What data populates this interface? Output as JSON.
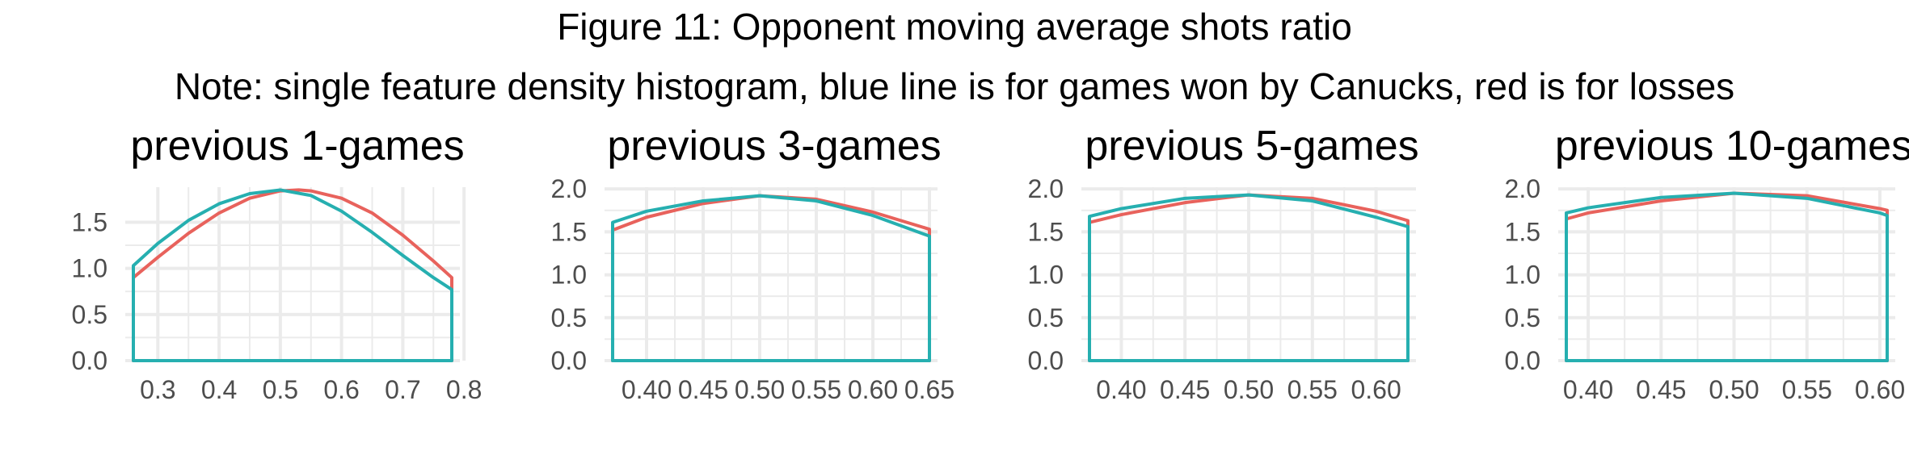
{
  "figure": {
    "title": "Figure 11: Opponent moving average shots ratio",
    "note": "Note: single feature density histogram, blue line is for games won by Canucks, red is for losses"
  },
  "colors": {
    "win": "#26AFB0",
    "loss": "#E8625C",
    "grid": "#EBEBEB",
    "tick_text": "#4D4D4D"
  },
  "chart_data": [
    {
      "type": "area",
      "title": "previous 1-games",
      "xlim": [
        0.26,
        0.78
      ],
      "ylim": [
        0,
        1.88
      ],
      "xticks": [
        0.3,
        0.4,
        0.5,
        0.6,
        0.7,
        0.8
      ],
      "xtick_labels": [
        "0.3",
        "0.4",
        "0.5",
        "0.6",
        "0.7",
        "0.8"
      ],
      "yticks": [
        0.0,
        0.5,
        1.0,
        1.5
      ],
      "ytick_labels": [
        "0.0",
        "0.5",
        "1.0",
        "1.5"
      ],
      "series": [
        {
          "color": "#E8625C",
          "x": [
            0.26,
            0.3,
            0.35,
            0.4,
            0.45,
            0.5,
            0.53,
            0.55,
            0.6,
            0.65,
            0.7,
            0.75,
            0.78
          ],
          "y": [
            0.9,
            1.12,
            1.38,
            1.6,
            1.76,
            1.84,
            1.85,
            1.84,
            1.76,
            1.6,
            1.36,
            1.08,
            0.9
          ]
        },
        {
          "color": "#26AFB0",
          "x": [
            0.26,
            0.3,
            0.35,
            0.4,
            0.45,
            0.5,
            0.55,
            0.6,
            0.65,
            0.7,
            0.75,
            0.78
          ],
          "y": [
            1.03,
            1.27,
            1.52,
            1.7,
            1.81,
            1.85,
            1.79,
            1.62,
            1.39,
            1.14,
            0.9,
            0.77
          ]
        }
      ]
    },
    {
      "type": "area",
      "title": "previous 3-games",
      "xlim": [
        0.37,
        0.65
      ],
      "ylim": [
        0,
        2.02
      ],
      "xticks": [
        0.4,
        0.45,
        0.5,
        0.55,
        0.6,
        0.65
      ],
      "xtick_labels": [
        "0.40",
        "0.45",
        "0.50",
        "0.55",
        "0.60",
        "0.65"
      ],
      "yticks": [
        0.0,
        0.5,
        1.0,
        1.5,
        2.0
      ],
      "ytick_labels": [
        "0.0",
        "0.5",
        "1.0",
        "1.5",
        "2.0"
      ],
      "series": [
        {
          "color": "#E8625C",
          "x": [
            0.37,
            0.4,
            0.45,
            0.5,
            0.55,
            0.6,
            0.65
          ],
          "y": [
            1.52,
            1.67,
            1.83,
            1.92,
            1.88,
            1.73,
            1.53
          ]
        },
        {
          "color": "#26AFB0",
          "x": [
            0.37,
            0.4,
            0.45,
            0.5,
            0.55,
            0.6,
            0.65
          ],
          "y": [
            1.61,
            1.74,
            1.86,
            1.92,
            1.86,
            1.69,
            1.45
          ]
        }
      ]
    },
    {
      "type": "area",
      "title": "previous 5-games",
      "xlim": [
        0.375,
        0.625
      ],
      "ylim": [
        0,
        2.02
      ],
      "xticks": [
        0.4,
        0.45,
        0.5,
        0.55,
        0.6
      ],
      "xtick_labels": [
        "0.40",
        "0.45",
        "0.50",
        "0.55",
        "0.60"
      ],
      "yticks": [
        0.0,
        0.5,
        1.0,
        1.5,
        2.0
      ],
      "ytick_labels": [
        "0.0",
        "0.5",
        "1.0",
        "1.5",
        "2.0"
      ],
      "series": [
        {
          "color": "#E8625C",
          "x": [
            0.375,
            0.4,
            0.45,
            0.5,
            0.55,
            0.6,
            0.625
          ],
          "y": [
            1.61,
            1.7,
            1.84,
            1.93,
            1.89,
            1.74,
            1.63
          ]
        },
        {
          "color": "#26AFB0",
          "x": [
            0.375,
            0.4,
            0.45,
            0.5,
            0.55,
            0.6,
            0.625
          ],
          "y": [
            1.68,
            1.77,
            1.89,
            1.93,
            1.86,
            1.67,
            1.56
          ]
        }
      ]
    },
    {
      "type": "area",
      "title": "previous 10-games",
      "xlim": [
        0.385,
        0.605
      ],
      "ylim": [
        0,
        2.02
      ],
      "xticks": [
        0.4,
        0.45,
        0.5,
        0.55,
        0.6
      ],
      "xtick_labels": [
        "0.40",
        "0.45",
        "0.50",
        "0.55",
        "0.60"
      ],
      "yticks": [
        0.0,
        0.5,
        1.0,
        1.5,
        2.0
      ],
      "ytick_labels": [
        "0.0",
        "0.5",
        "1.0",
        "1.5",
        "2.0"
      ],
      "series": [
        {
          "color": "#E8625C",
          "x": [
            0.385,
            0.4,
            0.45,
            0.5,
            0.55,
            0.6,
            0.605
          ],
          "y": [
            1.65,
            1.72,
            1.86,
            1.95,
            1.92,
            1.77,
            1.75
          ]
        },
        {
          "color": "#26AFB0",
          "x": [
            0.385,
            0.4,
            0.45,
            0.5,
            0.55,
            0.6,
            0.605
          ],
          "y": [
            1.72,
            1.78,
            1.9,
            1.95,
            1.89,
            1.72,
            1.69
          ]
        }
      ]
    }
  ]
}
